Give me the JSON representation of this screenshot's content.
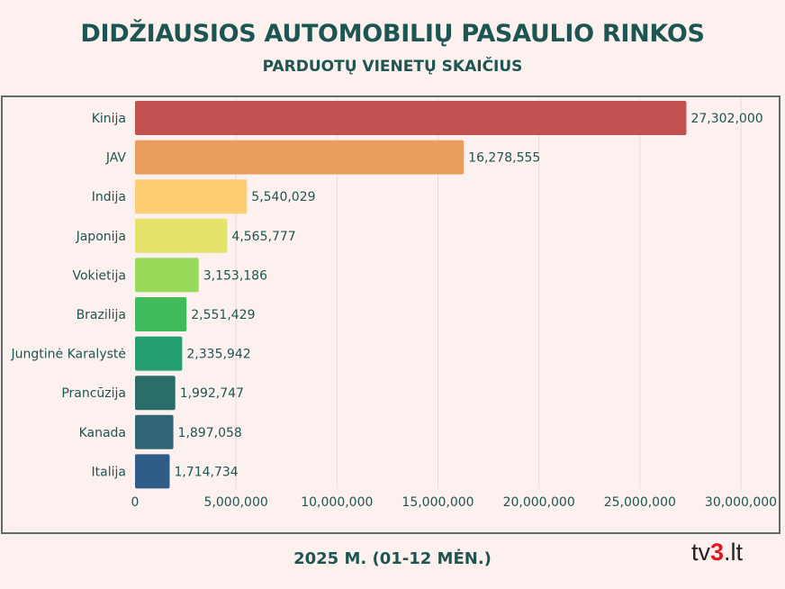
{
  "title": "DIDŽIAUSIOS AUTOMOBILIŲ PASAULIO RINKOS",
  "subtitle": "PARDUOTŲ VIENETŲ SKAIČIUS",
  "footer": "2025 M. (01-12 MĖN.)",
  "logo": {
    "pre": "tv",
    "three": "3",
    "post": ".lt"
  },
  "chart_data": {
    "type": "bar",
    "orientation": "horizontal",
    "title": "DIDŽIAUSIOS AUTOMOBILIŲ PASAULIO RINKOS",
    "subtitle": "PARDUOTŲ VIENETŲ SKAIČIUS",
    "categories": [
      "Kinija",
      "JAV",
      "Indija",
      "Japonija",
      "Vokietija",
      "Brazilija",
      "Jungtinė Karalystė",
      "Prancūzija",
      "Kanada",
      "Italija"
    ],
    "values": [
      27302000,
      16278555,
      5540029,
      4565777,
      3153186,
      2551429,
      2335942,
      1992747,
      1897058,
      1714734
    ],
    "value_labels": [
      "27,302,000",
      "16,278,555",
      "5,540,029",
      "4,565,777",
      "3,153,186",
      "2,551,429",
      "2,335,942",
      "1,992,747",
      "1,897,058",
      "1,714,734"
    ],
    "colors": [
      "#c25151",
      "#e99d5f",
      "#fdcd74",
      "#e5e36a",
      "#98da5a",
      "#40bb5a",
      "#22a072",
      "#2b6e69",
      "#306576",
      "#2f5d88"
    ],
    "xlim": [
      0,
      30000000
    ],
    "xticks": [
      0,
      5000000,
      10000000,
      15000000,
      20000000,
      25000000,
      30000000
    ],
    "xtick_labels": [
      "0",
      "5,000,000",
      "10,000,000",
      "15,000,000",
      "20,000,000",
      "25,000,000",
      "30,000,000"
    ],
    "grid": true,
    "xlabel": "",
    "ylabel": ""
  }
}
